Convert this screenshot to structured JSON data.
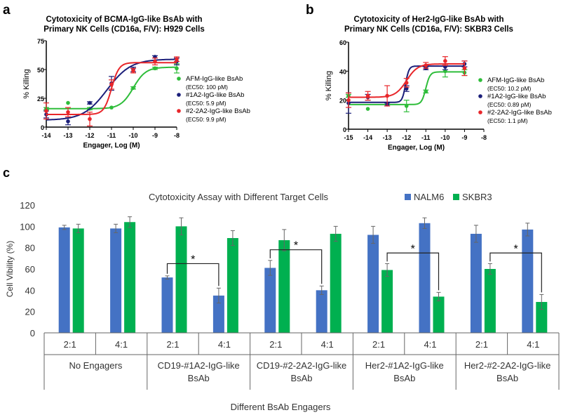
{
  "chart_data": [
    {
      "type": "line",
      "panel_label": "a",
      "title": [
        "Cytotoxicity of BCMA-IgG-like BsAb with",
        "Primary NK Cells (CD16a, F/V): H929 Cells"
      ],
      "xlabel": "Engager, Log (M)",
      "ylabel": "% Killing",
      "xlim": [
        -14,
        -8
      ],
      "ylim": [
        0,
        75
      ],
      "xticks": [
        -14,
        -13,
        -12,
        -11,
        -10,
        -9,
        -8
      ],
      "yticks": [
        0,
        25,
        50,
        75
      ],
      "series": [
        {
          "name": "AFM-IgG-like BsAb",
          "ec50": "(EC50: 100 pM)",
          "color": "#2ebd3a",
          "fit": {
            "bottom": 16,
            "top": 52,
            "logec50": -10,
            "hill": 1.5
          },
          "x": [
            -14,
            -13,
            -12,
            -11,
            -10,
            -9,
            -8
          ],
          "y": [
            16,
            21,
            16,
            17,
            34,
            51,
            51
          ],
          "err": [
            1,
            0,
            1,
            0.5,
            1,
            1,
            4
          ]
        },
        {
          "name": "#1A2-IgG-like BsAb",
          "ec50": "(EC50: 5.9 pM)",
          "color": "#1b1f7a",
          "fit": {
            "bottom": 6,
            "top": 59,
            "logec50": -11.2,
            "hill": 0.8
          },
          "x": [
            -14,
            -13,
            -12,
            -11,
            -10,
            -9,
            -8
          ],
          "y": [
            11,
            5,
            21,
            38,
            50,
            61,
            57
          ],
          "err": [
            3,
            3,
            1,
            6,
            2,
            1,
            3
          ]
        },
        {
          "name": "#2-2A2-IgG-like BsAb",
          "ec50": "(EC50: 9.9 pM)",
          "color": "#e8262a",
          "fit": {
            "bottom": 11,
            "top": 56,
            "logec50": -11,
            "hill": 2.5
          },
          "x": [
            -14,
            -13,
            -12,
            -11,
            -10,
            -9,
            -8
          ],
          "y": [
            14,
            13,
            7,
            37,
            49,
            57,
            59
          ],
          "err": [
            7,
            4,
            6,
            4,
            2,
            3,
            2
          ]
        }
      ]
    },
    {
      "type": "line",
      "panel_label": "b",
      "title": [
        "Cytotoxicity of Her2-IgG-like BsAb with",
        "Primary NK Cells (CD16a, F/V): SKBR3 Cells"
      ],
      "xlabel": "Engager, Log (M)",
      "ylabel": "% Killing",
      "xlim": [
        -15,
        -8
      ],
      "ylim": [
        0,
        60
      ],
      "xticks": [
        -15,
        -14,
        -13,
        -12,
        -11,
        -10,
        -9,
        -8
      ],
      "yticks": [
        0,
        20,
        40,
        60
      ],
      "series": [
        {
          "name": "AFM-IgG-like BsAb",
          "ec50": "(EC50: 10.2 pM)",
          "color": "#2ebd3a",
          "fit": {
            "bottom": 17,
            "top": 39.5,
            "logec50": -11,
            "hill": 4
          },
          "x": [
            -15,
            -14,
            -12,
            -11,
            -10,
            -9
          ],
          "y": [
            23,
            14,
            16,
            26,
            40,
            39
          ],
          "err": [
            1,
            0,
            4,
            1,
            4,
            2
          ]
        },
        {
          "name": "#1A2-IgG-like BsAb",
          "ec50": "(EC50: 0.89 pM)",
          "color": "#1b1f7a",
          "fit": {
            "bottom": 18.5,
            "top": 43.5,
            "logec50": -12.05,
            "hill": 5
          },
          "x": [
            -15,
            -14,
            -13,
            -12,
            -11,
            -10,
            -9
          ],
          "y": [
            18,
            22,
            17,
            28,
            42,
            43,
            45
          ],
          "err": [
            7,
            2,
            1,
            2,
            1,
            2,
            2
          ]
        },
        {
          "name": "#2-2A2-IgG-like BsAb",
          "ec50": "(EC50: 1.1 pM)",
          "color": "#e8262a",
          "fit": {
            "bottom": 22,
            "top": 45,
            "logec50": -12,
            "hill": 1.5
          },
          "x": [
            -15,
            -14,
            -13,
            -12,
            -11,
            -10,
            -9
          ],
          "y": [
            20,
            23,
            23,
            32,
            44,
            47,
            42
          ],
          "err": [
            5,
            3,
            7,
            3,
            2,
            3,
            5
          ]
        }
      ]
    },
    {
      "type": "bar",
      "panel_label": "c",
      "title": "Cytotoxicity Assay with Different Target Cells",
      "ylabel": "Cell Vibility (%)",
      "xlabel": "Different BsAb Engagers",
      "ylim": [
        0,
        120
      ],
      "yticks": [
        0,
        20,
        40,
        60,
        80,
        100,
        120
      ],
      "ratios": [
        "2:1",
        "4:1",
        "2:1",
        "4:1",
        "2:1",
        "4:1",
        "2:1",
        "4:1",
        "2:1",
        "4:1"
      ],
      "groups": [
        [
          "No Engagers"
        ],
        [
          "CD19-#1A2-IgG-like",
          "BsAb"
        ],
        [
          "CD19-#2-2A2-IgG-like",
          "BsAb"
        ],
        [
          "Her2-#1A2-IgG-like",
          "BsAb"
        ],
        [
          "Her2-#2-2A2-IgG-like",
          "BsAb"
        ]
      ],
      "series": [
        {
          "name": "NALM6",
          "color": "#4472c4",
          "values": [
            99,
            98,
            52,
            35,
            61,
            40,
            92,
            103,
            93,
            97
          ],
          "err": [
            2,
            4,
            1.5,
            7,
            7,
            4,
            8,
            5,
            8,
            6
          ]
        },
        {
          "name": "SKBR3",
          "color": "#00b050",
          "values": [
            98,
            104,
            100,
            89,
            87,
            93,
            59,
            34,
            60,
            29
          ],
          "err": [
            4,
            5,
            8,
            7,
            10,
            7,
            6,
            4,
            5,
            7
          ]
        }
      ],
      "significance": [
        {
          "label": "*",
          "from": [
            2,
            "NALM6"
          ],
          "to": [
            3,
            "NALM6"
          ],
          "level": 65
        },
        {
          "label": "*",
          "from": [
            4,
            "NALM6"
          ],
          "to": [
            5,
            "NALM6"
          ],
          "level": 78
        },
        {
          "label": "*",
          "from": [
            6,
            "SKBR3"
          ],
          "to": [
            7,
            "SKBR3"
          ],
          "level": 75
        },
        {
          "label": "*",
          "from": [
            8,
            "SKBR3"
          ],
          "to": [
            9,
            "SKBR3"
          ],
          "level": 75
        }
      ]
    }
  ]
}
